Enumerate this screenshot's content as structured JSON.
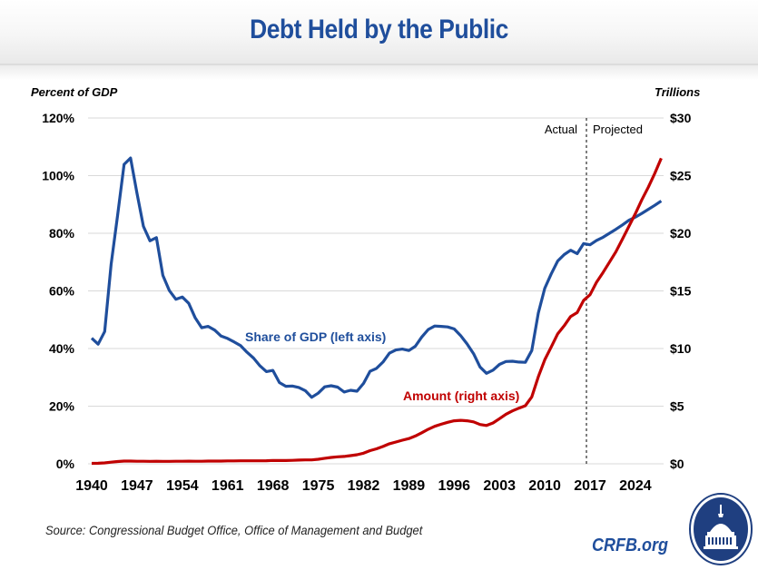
{
  "header": {
    "title": "Debt Held by the Public"
  },
  "footer": {
    "source": "Source: Congressional Budget Office, Office of Management and Budget",
    "brand": "CRFB.org",
    "logo_icon": "capitol-dome-seal-icon"
  },
  "colors": {
    "share_of_gdp": "#1f4e9c",
    "amount": "#c00000",
    "title": "#1f4e9c",
    "grid": "#d9d9d9"
  },
  "chart_data": {
    "type": "line",
    "title": "Debt Held by the Public",
    "xlabel": "",
    "ylabel": "Percent of GDP",
    "y2label": "Trillions",
    "x_ticks": [
      "1940",
      "1947",
      "1954",
      "1961",
      "1968",
      "1975",
      "1982",
      "1989",
      "1996",
      "2003",
      "2010",
      "2017",
      "2024"
    ],
    "y_ticks": [
      "0%",
      "20%",
      "40%",
      "60%",
      "80%",
      "100%",
      "120%"
    ],
    "y2_ticks": [
      "$0",
      "$5",
      "$10",
      "$15",
      "$20",
      "$25",
      "$30"
    ],
    "ylim": [
      0,
      120
    ],
    "y2lim": [
      0,
      30
    ],
    "grid": true,
    "annotations": {
      "actual": "Actual",
      "projected": "Projected",
      "divider_year": 2017
    },
    "x": [
      1940,
      1941,
      1942,
      1943,
      1944,
      1945,
      1946,
      1947,
      1948,
      1949,
      1950,
      1951,
      1952,
      1953,
      1954,
      1955,
      1956,
      1957,
      1958,
      1959,
      1960,
      1961,
      1962,
      1963,
      1964,
      1965,
      1966,
      1967,
      1968,
      1969,
      1970,
      1971,
      1972,
      1973,
      1974,
      1975,
      1976,
      1977,
      1978,
      1979,
      1980,
      1981,
      1982,
      1983,
      1984,
      1985,
      1986,
      1987,
      1988,
      1989,
      1990,
      1991,
      1992,
      1993,
      1994,
      1995,
      1996,
      1997,
      1998,
      1999,
      2000,
      2001,
      2002,
      2003,
      2004,
      2005,
      2006,
      2007,
      2008,
      2009,
      2010,
      2011,
      2012,
      2013,
      2014,
      2015,
      2016,
      2017,
      2018,
      2019,
      2020,
      2021,
      2022,
      2023,
      2024,
      2025,
      2026,
      2027,
      2028
    ],
    "series": [
      {
        "name": "Share of GDP (left axis)",
        "axis": "left",
        "label": "Share of GDP (left axis)",
        "values": [
          43.6,
          41.5,
          45.9,
          69.2,
          86.1,
          103.9,
          106.1,
          93.9,
          82.4,
          77.4,
          78.5,
          65.4,
          60.1,
          57.1,
          57.9,
          55.7,
          50.6,
          47.2,
          47.7,
          46.4,
          44.3,
          43.5,
          42.3,
          41.0,
          38.7,
          36.7,
          34.0,
          32.0,
          32.4,
          28.2,
          26.9,
          27.0,
          26.5,
          25.4,
          23.1,
          24.5,
          26.7,
          27.1,
          26.6,
          24.9,
          25.5,
          25.2,
          27.9,
          32.1,
          33.1,
          35.3,
          38.4,
          39.5,
          39.8,
          39.3,
          40.8,
          44.0,
          46.6,
          47.8,
          47.7,
          47.5,
          46.8,
          44.5,
          41.6,
          38.2,
          33.6,
          31.4,
          32.5,
          34.5,
          35.5,
          35.6,
          35.3,
          35.2,
          39.3,
          52.3,
          60.9,
          65.9,
          70.4,
          72.6,
          74.1,
          72.9,
          76.4,
          76.0,
          77.5,
          78.6,
          80.0,
          81.4,
          82.9,
          84.5,
          85.6,
          86.9,
          88.3,
          89.7,
          91.2
        ]
      },
      {
        "name": "Amount (right axis)",
        "axis": "right",
        "label": "Amount (right axis)",
        "values": [
          0.04,
          0.05,
          0.08,
          0.14,
          0.2,
          0.24,
          0.24,
          0.22,
          0.22,
          0.21,
          0.22,
          0.21,
          0.21,
          0.22,
          0.22,
          0.23,
          0.22,
          0.22,
          0.24,
          0.24,
          0.24,
          0.25,
          0.25,
          0.26,
          0.26,
          0.26,
          0.26,
          0.27,
          0.29,
          0.28,
          0.28,
          0.3,
          0.32,
          0.34,
          0.34,
          0.39,
          0.48,
          0.55,
          0.61,
          0.64,
          0.71,
          0.79,
          0.92,
          1.14,
          1.3,
          1.5,
          1.74,
          1.89,
          2.05,
          2.19,
          2.41,
          2.69,
          3.0,
          3.25,
          3.43,
          3.6,
          3.73,
          3.77,
          3.73,
          3.64,
          3.41,
          3.32,
          3.54,
          3.91,
          4.3,
          4.59,
          4.83,
          5.04,
          5.8,
          7.55,
          9.02,
          10.13,
          11.28,
          11.98,
          12.78,
          13.12,
          14.17,
          14.67,
          15.75,
          16.6,
          17.5,
          18.4,
          19.5,
          20.6,
          21.7,
          22.9,
          24.0,
          25.2,
          26.5
        ]
      }
    ]
  }
}
